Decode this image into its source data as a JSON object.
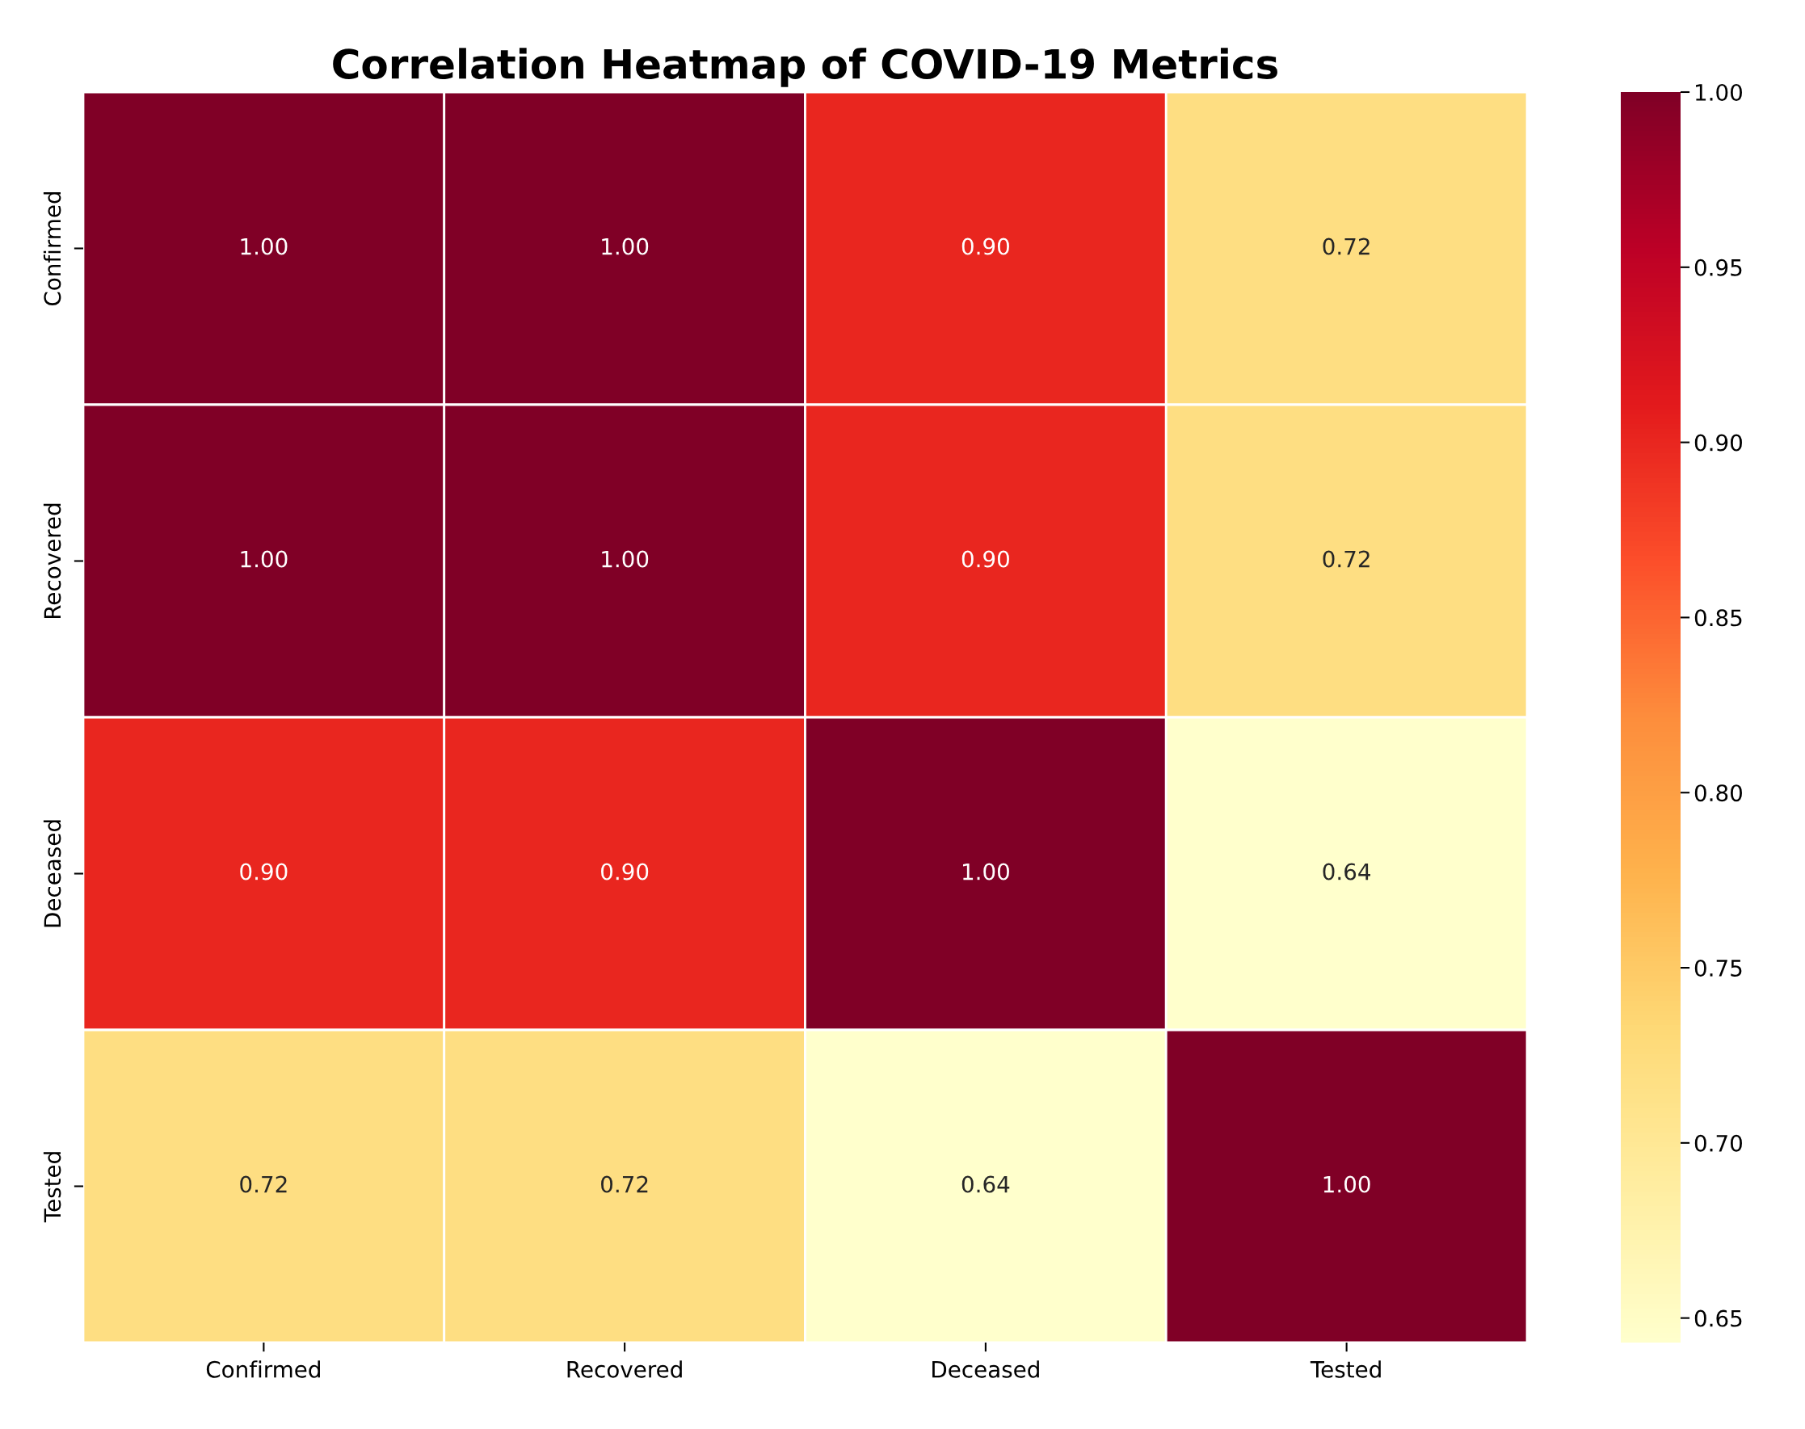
{
  "chart_data": {
    "type": "heatmap",
    "title": "Correlation Heatmap of COVID-19 Metrics",
    "categories": [
      "Confirmed",
      "Recovered",
      "Deceased",
      "Tested"
    ],
    "y_categories": [
      "Confirmed",
      "Recovered",
      "Deceased",
      "Tested"
    ],
    "cells": [
      [
        1.0,
        1.0,
        0.9,
        0.72
      ],
      [
        1.0,
        1.0,
        0.9,
        0.72
      ],
      [
        0.9,
        0.9,
        1.0,
        0.64
      ],
      [
        0.72,
        0.72,
        0.64,
        1.0
      ]
    ],
    "cell_labels": [
      [
        "1.00",
        "1.00",
        "0.90",
        "0.72"
      ],
      [
        "1.00",
        "1.00",
        "0.90",
        "0.72"
      ],
      [
        "0.90",
        "0.90",
        "1.00",
        "0.64"
      ],
      [
        "0.72",
        "0.72",
        "0.64",
        "1.00"
      ]
    ],
    "clim": [
      0.643,
      1.0
    ],
    "cticks": [
      {
        "value": 0.65,
        "label": "0.65"
      },
      {
        "value": 0.7,
        "label": "0.70"
      },
      {
        "value": 0.75,
        "label": "0.75"
      },
      {
        "value": 0.8,
        "label": "0.80"
      },
      {
        "value": 0.85,
        "label": "0.85"
      },
      {
        "value": 0.9,
        "label": "0.90"
      },
      {
        "value": 0.95,
        "label": "0.95"
      },
      {
        "value": 1.0,
        "label": "1.00"
      }
    ]
  }
}
